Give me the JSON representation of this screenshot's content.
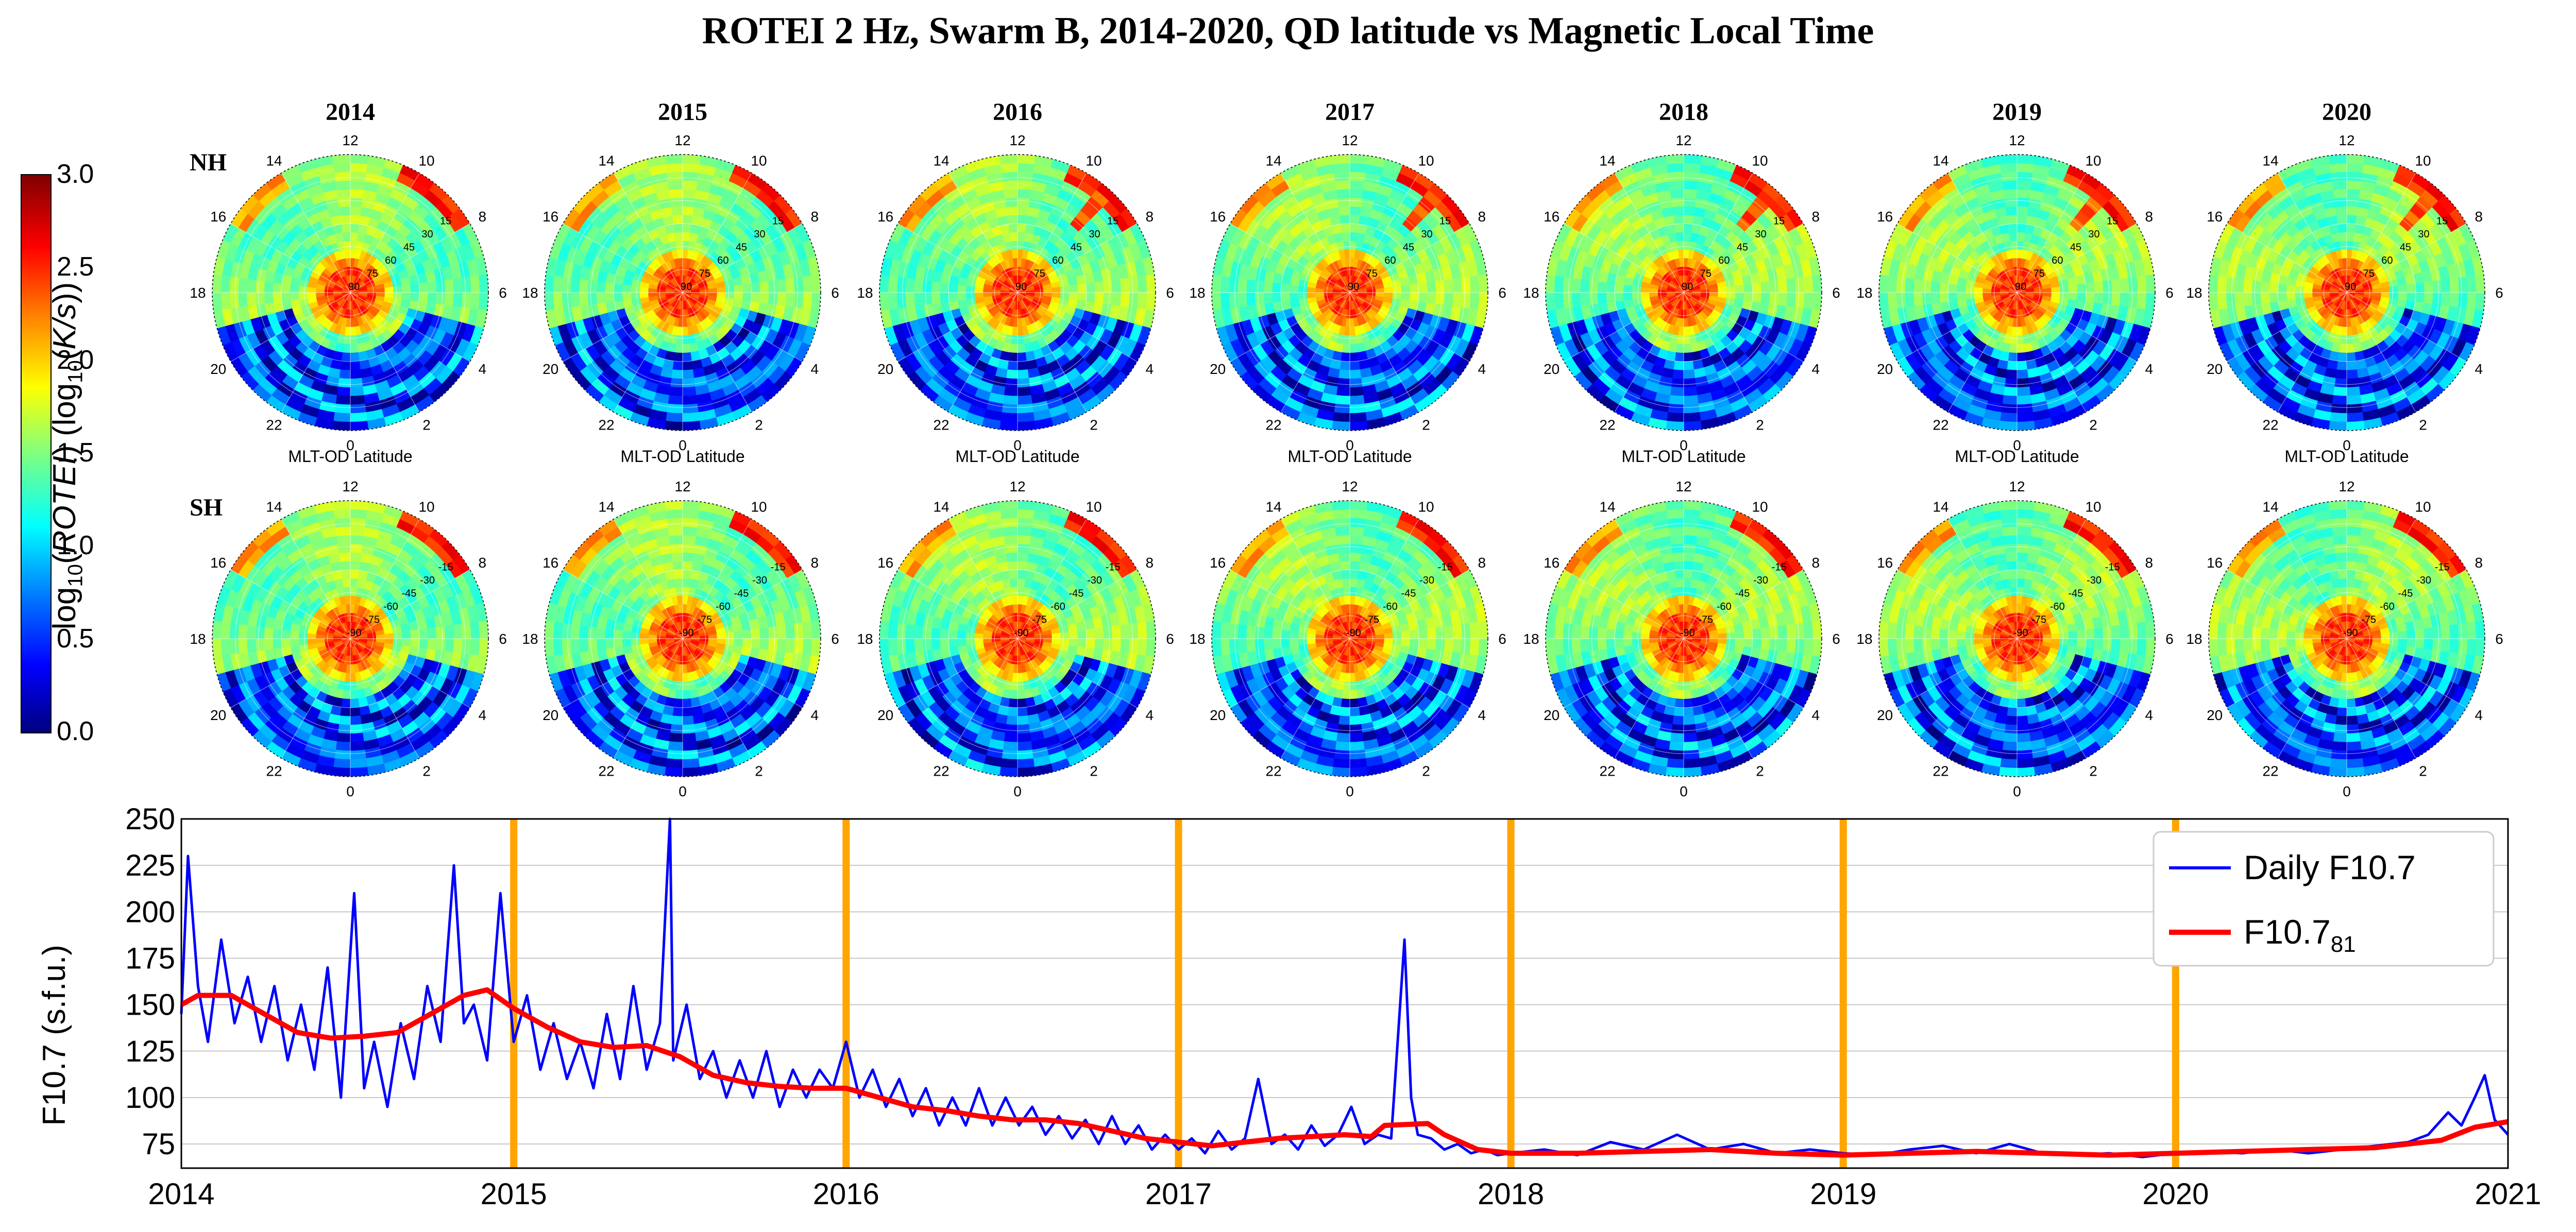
{
  "title": "ROTEI 2 Hz, Swarm B, 2014-2020, QD latitude vs Magnetic Local Time",
  "years": [
    "2014",
    "2015",
    "2016",
    "2017",
    "2018",
    "2019",
    "2020"
  ],
  "hemispheres": [
    "NH",
    "SH"
  ],
  "panel_caption": "MLT-OD Latitude",
  "mlt_labels": [
    "0",
    "2",
    "4",
    "6",
    "8",
    "10",
    "12",
    "14",
    "16",
    "18",
    "20",
    "22"
  ],
  "nh_lat_labels": [
    "90",
    "75",
    "60",
    "45",
    "30",
    "15"
  ],
  "sh_lat_labels": [
    "-90",
    "-75",
    "-60",
    "-45",
    "-30",
    "-15"
  ],
  "colorbar": {
    "label": "log10(ROTEI) (log10(K/s))",
    "ticks": [
      "0.0",
      "0.5",
      "1.0",
      "1.5",
      "2.0",
      "2.5",
      "3.0"
    ],
    "range": [
      0.0,
      3.0
    ],
    "colors": [
      "#00007f",
      "#0000ff",
      "#007fff",
      "#00ffff",
      "#7fff7f",
      "#ffff00",
      "#ff7f00",
      "#ff0000",
      "#7f0000"
    ]
  },
  "chart_data": {
    "type": "line",
    "ylabel": "F10.7 (s.f.u.)",
    "xlim": [
      2014,
      2021
    ],
    "ylim": [
      62,
      250
    ],
    "x_ticks": [
      "2014",
      "2015",
      "2016",
      "2017",
      "2018",
      "2019",
      "2020",
      "2021"
    ],
    "y_ticks": [
      "75",
      "100",
      "125",
      "150",
      "175",
      "200",
      "225",
      "250"
    ],
    "grid": true,
    "legend_position": "top-right",
    "vertical_markers": [
      2015,
      2016,
      2017,
      2018,
      2019,
      2020
    ],
    "marker_color": "#ffa500",
    "series": [
      {
        "name": "Daily F10.7",
        "color": "#0000ff",
        "points": [
          [
            2014.0,
            145
          ],
          [
            2014.02,
            230
          ],
          [
            2014.05,
            160
          ],
          [
            2014.08,
            130
          ],
          [
            2014.12,
            185
          ],
          [
            2014.16,
            140
          ],
          [
            2014.2,
            165
          ],
          [
            2014.24,
            130
          ],
          [
            2014.28,
            160
          ],
          [
            2014.32,
            120
          ],
          [
            2014.36,
            150
          ],
          [
            2014.4,
            115
          ],
          [
            2014.44,
            170
          ],
          [
            2014.48,
            100
          ],
          [
            2014.52,
            210
          ],
          [
            2014.55,
            105
          ],
          [
            2014.58,
            130
          ],
          [
            2014.62,
            95
          ],
          [
            2014.66,
            140
          ],
          [
            2014.7,
            110
          ],
          [
            2014.74,
            160
          ],
          [
            2014.78,
            130
          ],
          [
            2014.82,
            225
          ],
          [
            2014.85,
            140
          ],
          [
            2014.88,
            150
          ],
          [
            2014.92,
            120
          ],
          [
            2014.96,
            210
          ],
          [
            2015.0,
            130
          ],
          [
            2015.04,
            155
          ],
          [
            2015.08,
            115
          ],
          [
            2015.12,
            140
          ],
          [
            2015.16,
            110
          ],
          [
            2015.2,
            130
          ],
          [
            2015.24,
            105
          ],
          [
            2015.28,
            145
          ],
          [
            2015.32,
            110
          ],
          [
            2015.36,
            160
          ],
          [
            2015.4,
            115
          ],
          [
            2015.44,
            140
          ],
          [
            2015.47,
            250
          ],
          [
            2015.48,
            120
          ],
          [
            2015.52,
            150
          ],
          [
            2015.56,
            110
          ],
          [
            2015.6,
            125
          ],
          [
            2015.64,
            100
          ],
          [
            2015.68,
            120
          ],
          [
            2015.72,
            100
          ],
          [
            2015.76,
            125
          ],
          [
            2015.8,
            95
          ],
          [
            2015.84,
            115
          ],
          [
            2015.88,
            100
          ],
          [
            2015.92,
            115
          ],
          [
            2015.96,
            105
          ],
          [
            2016.0,
            130
          ],
          [
            2016.04,
            100
          ],
          [
            2016.08,
            115
          ],
          [
            2016.12,
            95
          ],
          [
            2016.16,
            110
          ],
          [
            2016.2,
            90
          ],
          [
            2016.24,
            105
          ],
          [
            2016.28,
            85
          ],
          [
            2016.32,
            100
          ],
          [
            2016.36,
            85
          ],
          [
            2016.4,
            105
          ],
          [
            2016.44,
            85
          ],
          [
            2016.48,
            100
          ],
          [
            2016.52,
            85
          ],
          [
            2016.56,
            95
          ],
          [
            2016.6,
            80
          ],
          [
            2016.64,
            90
          ],
          [
            2016.68,
            78
          ],
          [
            2016.72,
            88
          ],
          [
            2016.76,
            75
          ],
          [
            2016.8,
            90
          ],
          [
            2016.84,
            75
          ],
          [
            2016.88,
            85
          ],
          [
            2016.92,
            72
          ],
          [
            2016.96,
            80
          ],
          [
            2017.0,
            72
          ],
          [
            2017.04,
            78
          ],
          [
            2017.08,
            70
          ],
          [
            2017.12,
            82
          ],
          [
            2017.16,
            72
          ],
          [
            2017.2,
            78
          ],
          [
            2017.24,
            110
          ],
          [
            2017.28,
            75
          ],
          [
            2017.32,
            80
          ],
          [
            2017.36,
            72
          ],
          [
            2017.4,
            85
          ],
          [
            2017.44,
            74
          ],
          [
            2017.48,
            80
          ],
          [
            2017.52,
            95
          ],
          [
            2017.56,
            75
          ],
          [
            2017.6,
            80
          ],
          [
            2017.64,
            78
          ],
          [
            2017.68,
            185
          ],
          [
            2017.7,
            100
          ],
          [
            2017.72,
            80
          ],
          [
            2017.76,
            78
          ],
          [
            2017.8,
            72
          ],
          [
            2017.84,
            75
          ],
          [
            2017.88,
            70
          ],
          [
            2017.92,
            72
          ],
          [
            2017.96,
            69
          ],
          [
            2018.0,
            70
          ],
          [
            2018.1,
            72
          ],
          [
            2018.2,
            69
          ],
          [
            2018.3,
            76
          ],
          [
            2018.4,
            72
          ],
          [
            2018.5,
            80
          ],
          [
            2018.6,
            72
          ],
          [
            2018.7,
            75
          ],
          [
            2018.8,
            70
          ],
          [
            2018.9,
            72
          ],
          [
            2019.0,
            70
          ],
          [
            2019.1,
            69
          ],
          [
            2019.2,
            72
          ],
          [
            2019.3,
            74
          ],
          [
            2019.4,
            70
          ],
          [
            2019.5,
            75
          ],
          [
            2019.6,
            70
          ],
          [
            2019.7,
            69
          ],
          [
            2019.8,
            70
          ],
          [
            2019.9,
            68
          ],
          [
            2020.0,
            70
          ],
          [
            2020.1,
            71
          ],
          [
            2020.2,
            70
          ],
          [
            2020.3,
            72
          ],
          [
            2020.4,
            70
          ],
          [
            2020.5,
            72
          ],
          [
            2020.6,
            74
          ],
          [
            2020.7,
            76
          ],
          [
            2020.76,
            80
          ],
          [
            2020.82,
            92
          ],
          [
            2020.86,
            85
          ],
          [
            2020.9,
            100
          ],
          [
            2020.93,
            112
          ],
          [
            2020.96,
            88
          ],
          [
            2021.0,
            80
          ]
        ]
      },
      {
        "name": "F10.781",
        "color": "#ff0000",
        "points": [
          [
            2014.0,
            150
          ],
          [
            2014.05,
            155
          ],
          [
            2014.15,
            155
          ],
          [
            2014.25,
            145
          ],
          [
            2014.35,
            135
          ],
          [
            2014.45,
            132
          ],
          [
            2014.55,
            133
          ],
          [
            2014.65,
            135
          ],
          [
            2014.75,
            145
          ],
          [
            2014.85,
            155
          ],
          [
            2014.92,
            158
          ],
          [
            2015.0,
            148
          ],
          [
            2015.1,
            138
          ],
          [
            2015.2,
            130
          ],
          [
            2015.3,
            127
          ],
          [
            2015.4,
            128
          ],
          [
            2015.5,
            122
          ],
          [
            2015.6,
            112
          ],
          [
            2015.7,
            108
          ],
          [
            2015.8,
            106
          ],
          [
            2015.9,
            105
          ],
          [
            2016.0,
            105
          ],
          [
            2016.1,
            100
          ],
          [
            2016.2,
            95
          ],
          [
            2016.3,
            93
          ],
          [
            2016.4,
            90
          ],
          [
            2016.5,
            88
          ],
          [
            2016.6,
            88
          ],
          [
            2016.7,
            86
          ],
          [
            2016.8,
            82
          ],
          [
            2016.9,
            78
          ],
          [
            2017.0,
            76
          ],
          [
            2017.1,
            74
          ],
          [
            2017.2,
            76
          ],
          [
            2017.3,
            78
          ],
          [
            2017.4,
            79
          ],
          [
            2017.5,
            80
          ],
          [
            2017.58,
            79
          ],
          [
            2017.62,
            85
          ],
          [
            2017.75,
            86
          ],
          [
            2017.8,
            80
          ],
          [
            2017.9,
            72
          ],
          [
            2018.0,
            70
          ],
          [
            2018.2,
            70
          ],
          [
            2018.4,
            71
          ],
          [
            2018.6,
            72
          ],
          [
            2018.8,
            70
          ],
          [
            2019.0,
            69
          ],
          [
            2019.2,
            70
          ],
          [
            2019.4,
            71
          ],
          [
            2019.6,
            70
          ],
          [
            2019.8,
            69
          ],
          [
            2020.0,
            70
          ],
          [
            2020.2,
            71
          ],
          [
            2020.4,
            72
          ],
          [
            2020.6,
            73
          ],
          [
            2020.8,
            77
          ],
          [
            2020.9,
            84
          ],
          [
            2021.0,
            87
          ]
        ]
      }
    ]
  }
}
